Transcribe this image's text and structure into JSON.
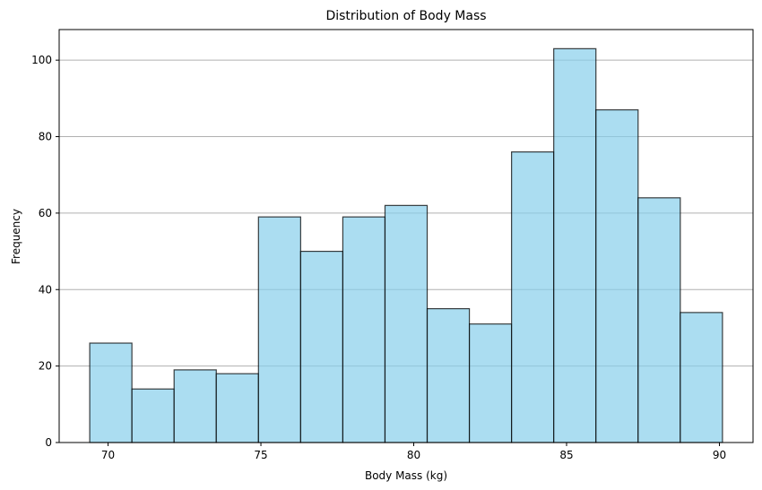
{
  "chart_data": {
    "type": "bar",
    "title": "Distribution of Body Mass",
    "xlabel": "Body Mass (kg)",
    "ylabel": "Frequency",
    "bin_edges": [
      69.4,
      70.78,
      72.16,
      73.54,
      74.92,
      76.3,
      77.68,
      79.06,
      80.44,
      81.82,
      83.2,
      84.58,
      85.96,
      87.34,
      88.72,
      90.1
    ],
    "values": [
      26,
      14,
      19,
      18,
      59,
      50,
      59,
      62,
      35,
      31,
      76,
      103,
      87,
      64,
      34
    ],
    "xlim": [
      68.4,
      91.1
    ],
    "ylim": [
      0,
      108
    ],
    "xticks": [
      70,
      75,
      80,
      85,
      90
    ],
    "yticks": [
      0,
      20,
      40,
      60,
      80,
      100
    ],
    "grid": "y",
    "colors": {
      "bar_fill": "#87CEEB",
      "bar_edge": "#000000",
      "grid": "#b0b0b0"
    }
  }
}
